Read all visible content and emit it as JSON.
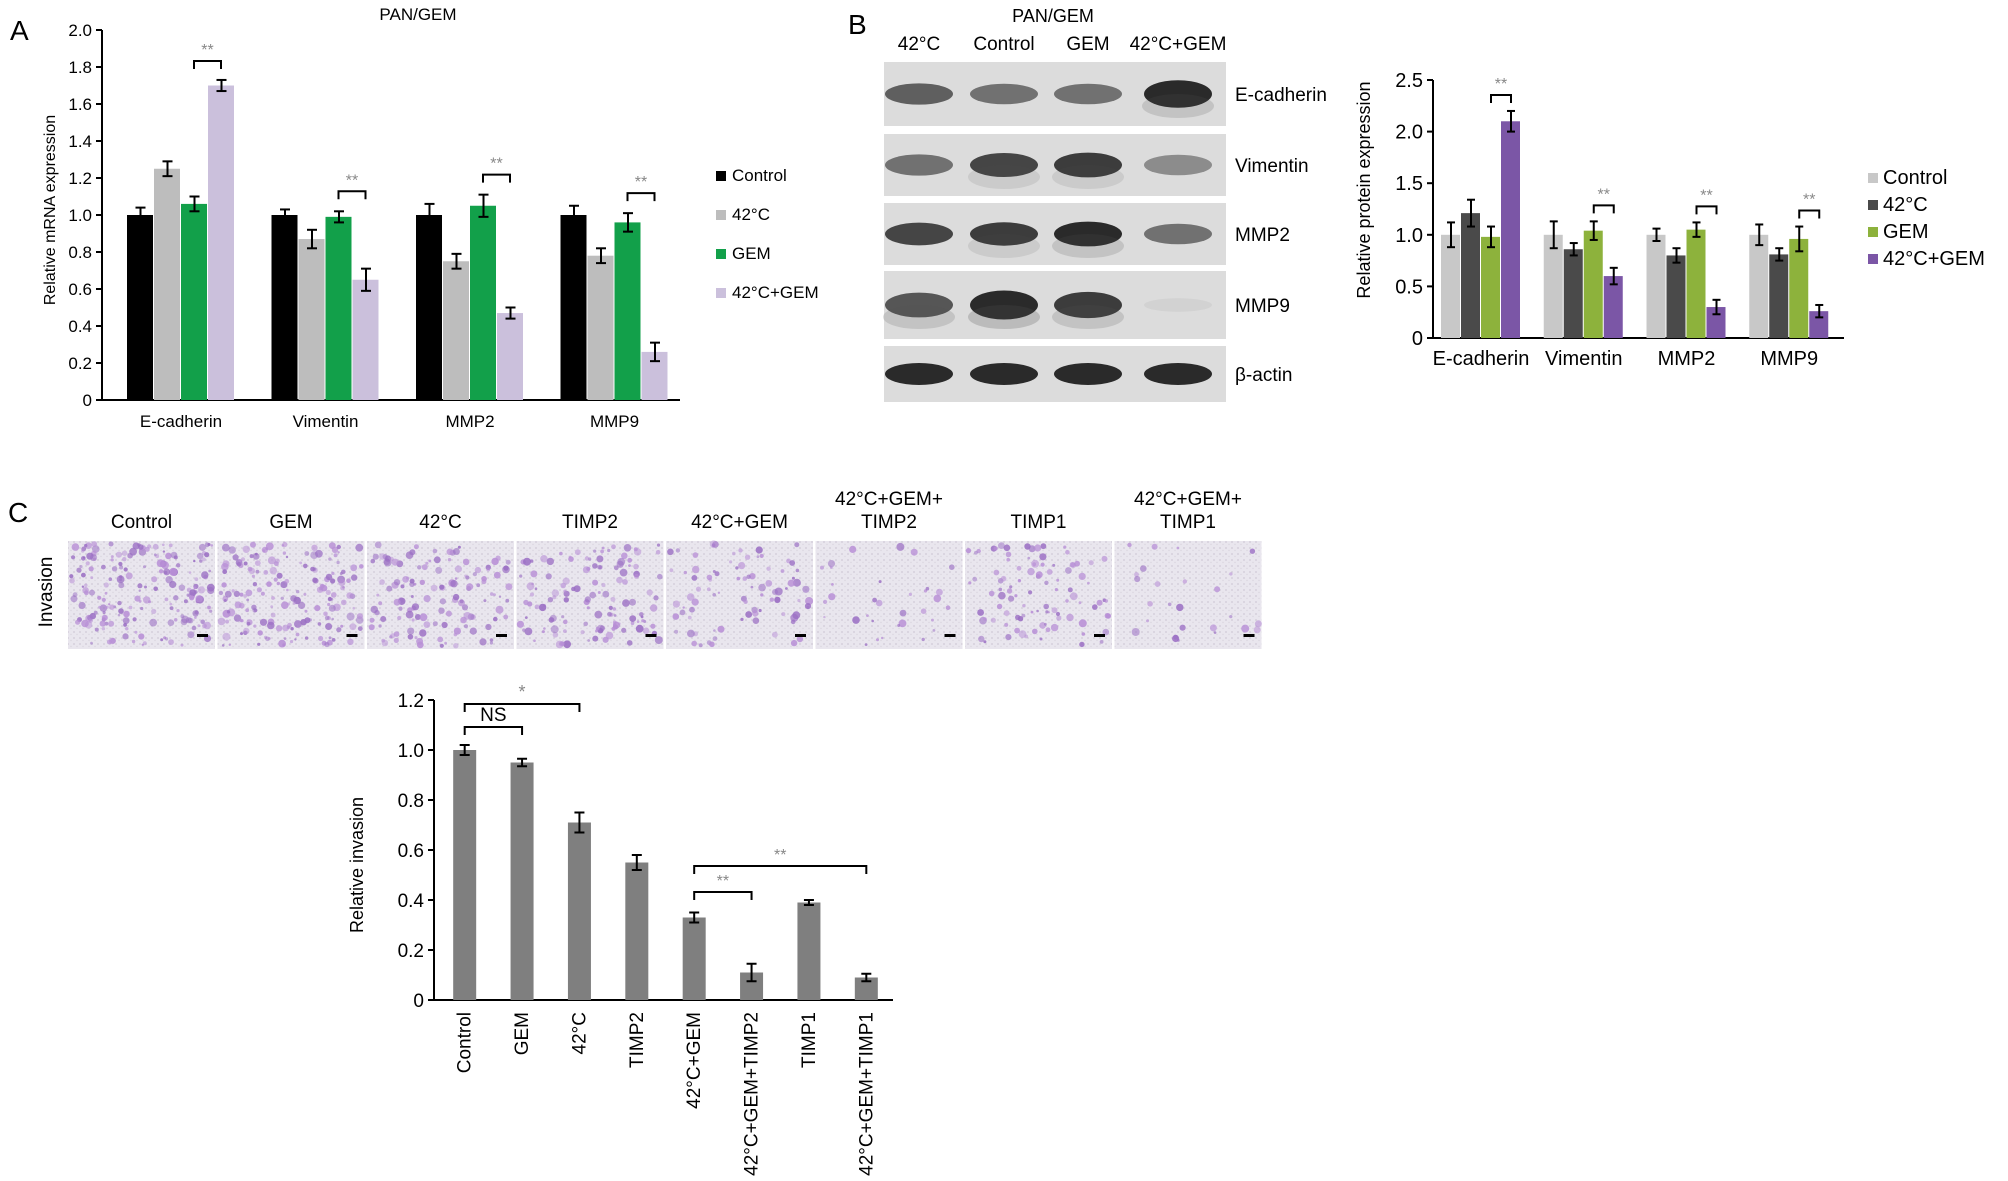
{
  "panel_a": {
    "letter": "A",
    "title": "PAN/GEM",
    "ylabel": "Relative mRNA expression",
    "yticks": [
      "0",
      "0.2",
      "0.4",
      "0.6",
      "0.8",
      "1.0",
      "1.2",
      "1.4",
      "1.6",
      "1.8",
      "2.0"
    ],
    "sig": [
      "**",
      "**",
      "**",
      "**"
    ],
    "legend": [
      "Control",
      "42°C",
      "GEM",
      "42°C+GEM"
    ],
    "colors": [
      "#000000",
      "#bdbdbd",
      "#12a04a",
      "#cbc0dc"
    ]
  },
  "panel_b": {
    "letter": "B",
    "blot_title": "PAN/GEM",
    "lanes": [
      "42°C",
      "Control",
      "GEM",
      "42°C+GEM"
    ],
    "rows": [
      "E-cadherin",
      "Vimentin",
      "MMP2",
      "MMP9",
      "β-actin"
    ],
    "ylabel": "Relative protein expression",
    "yticks": [
      "0",
      "0.5",
      "1.0",
      "1.5",
      "2.0",
      "2.5"
    ],
    "sig": [
      "**",
      "**",
      "**",
      "**"
    ],
    "legend": [
      "Control",
      "42°C",
      "GEM",
      "42°C+GEM"
    ],
    "colors": [
      "#c8c8c8",
      "#4a4a4a",
      "#8db23c",
      "#7b56a6"
    ]
  },
  "panel_c": {
    "letter": "C",
    "row_label": "Invasion",
    "images": [
      {
        "label1": "Control",
        "label2": "",
        "density": 0.9
      },
      {
        "label1": "GEM",
        "label2": "",
        "density": 0.85
      },
      {
        "label1": "42°C",
        "label2": "",
        "density": 0.6
      },
      {
        "label1": "TIMP2",
        "label2": "",
        "density": 0.6
      },
      {
        "label1": "42°C+GEM",
        "label2": "",
        "density": 0.4
      },
      {
        "label1": "42°C+GEM+",
        "label2": "TIMP2",
        "density": 0.15
      },
      {
        "label1": "TIMP1",
        "label2": "",
        "density": 0.45
      },
      {
        "label1": "42°C+GEM+",
        "label2": "TIMP1",
        "density": 0.12
      }
    ],
    "ylabel": "Relative invasion",
    "yticks": [
      "0",
      "0.2",
      "0.4",
      "0.6",
      "0.8",
      "1.0",
      "1.2"
    ],
    "sig": [
      {
        "text": "NS"
      },
      {
        "text": "*"
      },
      {
        "text": "**"
      },
      {
        "text": "**"
      }
    ],
    "bar_color": "#7f7f7f"
  },
  "chart_data": [
    {
      "type": "bar",
      "title": "PAN/GEM",
      "xlabel": "",
      "ylabel": "Relative mRNA expression",
      "ylim": [
        0,
        2.0
      ],
      "categories": [
        "E-cadherin",
        "Vimentin",
        "MMP2",
        "MMP9"
      ],
      "series": [
        {
          "name": "Control",
          "values": [
            1.0,
            1.0,
            1.0,
            1.0
          ],
          "errors": [
            0.04,
            0.03,
            0.06,
            0.05
          ]
        },
        {
          "name": "42°C",
          "values": [
            1.25,
            0.87,
            0.75,
            0.78
          ],
          "errors": [
            0.04,
            0.05,
            0.04,
            0.04
          ]
        },
        {
          "name": "GEM",
          "values": [
            1.06,
            0.99,
            1.05,
            0.96
          ],
          "errors": [
            0.04,
            0.03,
            0.06,
            0.05
          ]
        },
        {
          "name": "42°C+GEM",
          "values": [
            1.7,
            0.65,
            0.47,
            0.26
          ],
          "errors": [
            0.03,
            0.06,
            0.03,
            0.05
          ]
        }
      ],
      "grid": false,
      "legend": "right"
    },
    {
      "type": "bar",
      "title": "",
      "xlabel": "",
      "ylabel": "Relative protein expression",
      "ylim": [
        0,
        2.5
      ],
      "categories": [
        "E-cadherin",
        "Vimentin",
        "MMP2",
        "MMP9"
      ],
      "series": [
        {
          "name": "Control",
          "values": [
            1.0,
            1.0,
            1.0,
            1.0
          ],
          "errors": [
            0.12,
            0.13,
            0.06,
            0.1
          ]
        },
        {
          "name": "42°C",
          "values": [
            1.21,
            0.86,
            0.8,
            0.81
          ],
          "errors": [
            0.13,
            0.06,
            0.07,
            0.06
          ]
        },
        {
          "name": "GEM",
          "values": [
            0.98,
            1.04,
            1.05,
            0.96
          ],
          "errors": [
            0.1,
            0.09,
            0.07,
            0.12
          ]
        },
        {
          "name": "42°C+GEM",
          "values": [
            2.1,
            0.6,
            0.3,
            0.26
          ],
          "errors": [
            0.1,
            0.08,
            0.07,
            0.06
          ]
        }
      ],
      "grid": false,
      "legend": "right"
    },
    {
      "type": "bar",
      "title": "",
      "xlabel": "",
      "ylabel": "Relative invasion",
      "ylim": [
        0,
        1.2
      ],
      "categories": [
        "Control",
        "GEM",
        "42°C",
        "TIMP2",
        "42°C+GEM",
        "42°C+GEM+TIMP2",
        "TIMP1",
        "42°C+GEM+TIMP1"
      ],
      "values": [
        1.0,
        0.95,
        0.71,
        0.55,
        0.33,
        0.11,
        0.39,
        0.09
      ],
      "errors": [
        0.02,
        0.015,
        0.04,
        0.03,
        0.02,
        0.035,
        0.01,
        0.015
      ],
      "grid": false,
      "legend": "none"
    }
  ]
}
